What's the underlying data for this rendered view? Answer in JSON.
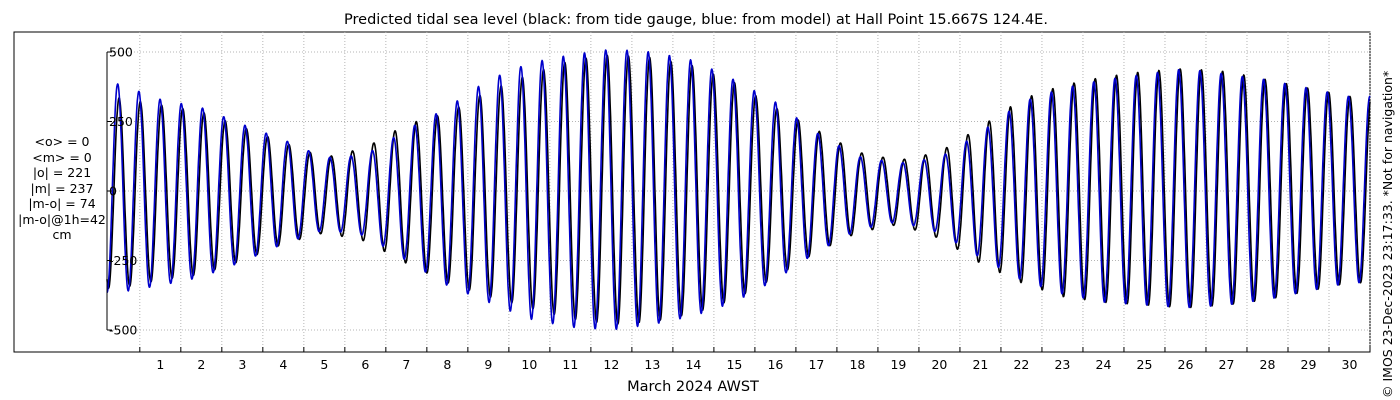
{
  "chart_data": {
    "type": "line",
    "title": "Predicted tidal sea level (black: from tide gauge, blue: from model) at Hall Point 15.667S 124.4E.",
    "xlabel": "March 2024 AWST",
    "ylabel": "",
    "x_unit": "day of March 2024",
    "xlim": [
      0.2,
      31
    ],
    "ylim": [
      -500,
      500
    ],
    "x_tick_labels": [
      "1",
      "2",
      "3",
      "4",
      "5",
      "6",
      "7",
      "8",
      "9",
      "10",
      "11",
      "12",
      "13",
      "14",
      "15",
      "16",
      "17",
      "18",
      "19",
      "20",
      "21",
      "22",
      "23",
      "24",
      "25",
      "26",
      "27",
      "28",
      "29",
      "30"
    ],
    "y_tick_labels": [
      "500",
      "250",
      "0",
      "-250",
      "-500"
    ],
    "grid": true,
    "series": [
      {
        "name": "from tide gauge",
        "color": "#000000",
        "day_midpoints": [
          0.5,
          1.5,
          2.5,
          3.5,
          4.5,
          5.5,
          6.5,
          7.5,
          8.5,
          9.5,
          10.5,
          11.5,
          12.5,
          13.5,
          14.5,
          15.5,
          16.5,
          17.5,
          18.5,
          19.5,
          20.5,
          21.5,
          22.5,
          23.5,
          24.5,
          25.5,
          26.5,
          27.5,
          28.5,
          29.5,
          30.5
        ],
        "daily_high": [
          335,
          310,
          285,
          230,
          175,
          120,
          155,
          240,
          280,
          360,
          420,
          470,
          490,
          480,
          450,
          390,
          300,
          220,
          140,
          110,
          140,
          230,
          330,
          380,
          410,
          430,
          440,
          430,
          400,
          370,
          340
        ],
        "daily_low": [
          -350,
          -320,
          -300,
          -250,
          -190,
          -150,
          -180,
          -260,
          -330,
          -380,
          -420,
          -460,
          -480,
          -470,
          -440,
          -390,
          -310,
          -220,
          -150,
          -120,
          -170,
          -260,
          -330,
          -380,
          -400,
          -410,
          -420,
          -410,
          -390,
          -360,
          -330
        ]
      },
      {
        "name": "from model",
        "color": "#0000cc",
        "day_midpoints": [
          0.5,
          1.5,
          2.5,
          3.5,
          4.5,
          5.5,
          6.5,
          7.5,
          8.5,
          9.5,
          10.5,
          11.5,
          12.5,
          13.5,
          14.5,
          15.5,
          16.5,
          17.5,
          18.5,
          19.5,
          20.5,
          21.5,
          22.5,
          23.5,
          24.5,
          25.5,
          26.5,
          27.5,
          28.5,
          29.5,
          30.5
        ],
        "daily_high": [
          385,
          330,
          300,
          240,
          185,
          120,
          130,
          220,
          300,
          400,
          460,
          490,
          510,
          500,
          470,
          400,
          320,
          210,
          125,
          100,
          120,
          210,
          320,
          370,
          400,
          420,
          440,
          420,
          400,
          370,
          340
        ],
        "daily_low": [
          -365,
          -340,
          -310,
          -255,
          -190,
          -140,
          -160,
          -250,
          -340,
          -400,
          -460,
          -490,
          -500,
          -480,
          -450,
          -400,
          -320,
          -220,
          -140,
          -110,
          -150,
          -240,
          -320,
          -370,
          -400,
          -410,
          -420,
          -410,
          -390,
          -360,
          -330
        ]
      }
    ]
  },
  "stats": [
    "<o> = 0",
    "<m> = 0",
    "|o| = 221",
    "|m| = 237",
    "|m-o| = 74",
    "|m-o|@1h=42",
    "cm"
  ],
  "side_note": "© IMOS 23-Dec-2023 23:17:33. *Not for navigation*"
}
